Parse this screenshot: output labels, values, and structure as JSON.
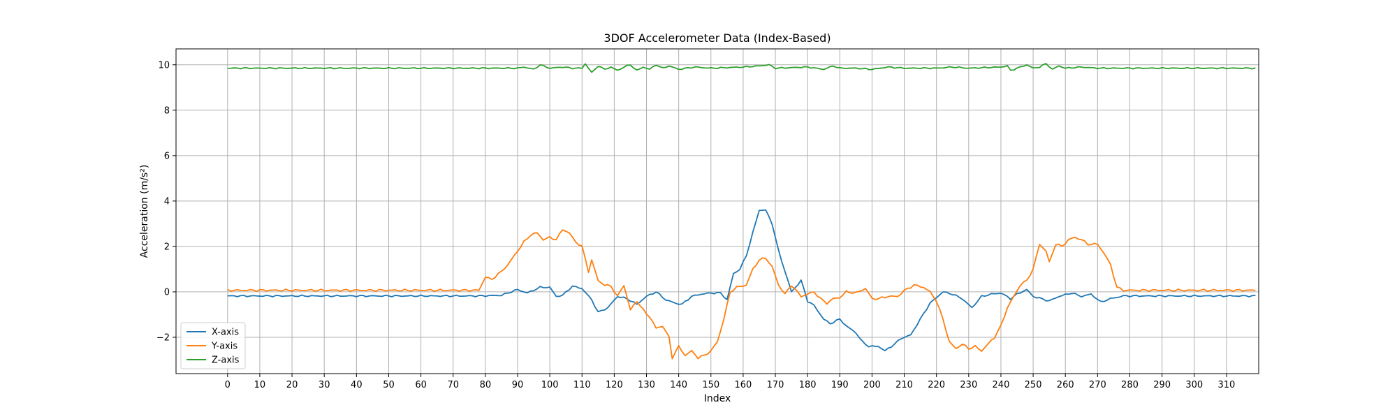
{
  "chart_data": {
    "type": "line",
    "title": "3DOF Accelerometer Data (Index-Based)",
    "xlabel": "Index",
    "ylabel": "Acceleration (m/s²)",
    "xlim": [
      -16,
      320
    ],
    "ylim": [
      -3.6,
      10.7
    ],
    "xticks": [
      0,
      10,
      20,
      30,
      40,
      50,
      60,
      70,
      80,
      90,
      100,
      110,
      120,
      130,
      140,
      150,
      160,
      170,
      180,
      190,
      200,
      210,
      220,
      230,
      240,
      250,
      260,
      270,
      280,
      290,
      300,
      310
    ],
    "yticks": [
      -2,
      0,
      2,
      4,
      6,
      8,
      10
    ],
    "grid": true,
    "legend_position": "lower-left",
    "x_range": [
      0,
      319
    ],
    "series": [
      {
        "name": "X-axis",
        "color": "#1f77b4",
        "keypoints": [
          [
            0,
            -0.18
          ],
          [
            78,
            -0.18
          ],
          [
            85,
            -0.15
          ],
          [
            90,
            0.1
          ],
          [
            93,
            -0.05
          ],
          [
            97,
            0.2
          ],
          [
            100,
            0.2
          ],
          [
            102,
            -0.2
          ],
          [
            104,
            -0.15
          ],
          [
            107,
            0.25
          ],
          [
            110,
            0.15
          ],
          [
            113,
            -0.35
          ],
          [
            115,
            -0.9
          ],
          [
            118,
            -0.7
          ],
          [
            121,
            -0.2
          ],
          [
            124,
            -0.3
          ],
          [
            127,
            -0.55
          ],
          [
            130,
            -0.2
          ],
          [
            133,
            0.0
          ],
          [
            136,
            -0.35
          ],
          [
            139,
            -0.5
          ],
          [
            141,
            -0.55
          ],
          [
            144,
            -0.2
          ],
          [
            147,
            -0.1
          ],
          [
            150,
            -0.05
          ],
          [
            153,
            -0.05
          ],
          [
            155,
            -0.35
          ],
          [
            157,
            0.8
          ],
          [
            159,
            1.0
          ],
          [
            161,
            1.6
          ],
          [
            163,
            2.6
          ],
          [
            165,
            3.6
          ],
          [
            167,
            3.6
          ],
          [
            169,
            3.0
          ],
          [
            171,
            1.8
          ],
          [
            173,
            0.9
          ],
          [
            175,
            0.0
          ],
          [
            178,
            0.5
          ],
          [
            180,
            -0.4
          ],
          [
            182,
            -0.6
          ],
          [
            185,
            -1.2
          ],
          [
            187,
            -1.4
          ],
          [
            190,
            -1.2
          ],
          [
            192,
            -1.5
          ],
          [
            195,
            -1.8
          ],
          [
            197,
            -2.2
          ],
          [
            199,
            -2.4
          ],
          [
            202,
            -2.4
          ],
          [
            204,
            -2.6
          ],
          [
            207,
            -2.3
          ],
          [
            209,
            -2.05
          ],
          [
            212,
            -1.9
          ],
          [
            215,
            -1.2
          ],
          [
            218,
            -0.5
          ],
          [
            222,
            0.0
          ],
          [
            225,
            -0.1
          ],
          [
            228,
            -0.3
          ],
          [
            231,
            -0.7
          ],
          [
            234,
            -0.2
          ],
          [
            237,
            -0.1
          ],
          [
            240,
            -0.05
          ],
          [
            243,
            -0.3
          ],
          [
            245,
            -0.1
          ],
          [
            248,
            0.1
          ],
          [
            250,
            -0.2
          ],
          [
            255,
            -0.4
          ],
          [
            258,
            -0.2
          ],
          [
            262,
            -0.05
          ],
          [
            265,
            -0.2
          ],
          [
            268,
            -0.1
          ],
          [
            271,
            -0.45
          ],
          [
            274,
            -0.3
          ],
          [
            278,
            -0.18
          ],
          [
            319,
            -0.18
          ]
        ],
        "noise": 0.04
      },
      {
        "name": "Y-axis",
        "color": "#ff7f0e",
        "keypoints": [
          [
            0,
            0.07
          ],
          [
            78,
            0.07
          ],
          [
            80,
            0.65
          ],
          [
            82,
            0.55
          ],
          [
            85,
            0.9
          ],
          [
            87,
            1.2
          ],
          [
            90,
            1.8
          ],
          [
            92,
            2.2
          ],
          [
            94,
            2.5
          ],
          [
            96,
            2.6
          ],
          [
            98,
            2.3
          ],
          [
            100,
            2.4
          ],
          [
            102,
            2.3
          ],
          [
            104,
            2.75
          ],
          [
            106,
            2.6
          ],
          [
            108,
            2.2
          ],
          [
            110,
            2.0
          ],
          [
            112,
            0.9
          ],
          [
            113,
            1.4
          ],
          [
            115,
            0.5
          ],
          [
            117,
            0.3
          ],
          [
            119,
            0.25
          ],
          [
            121,
            -0.2
          ],
          [
            123,
            0.3
          ],
          [
            125,
            -0.8
          ],
          [
            127,
            -0.4
          ],
          [
            129,
            -0.8
          ],
          [
            131,
            -1.1
          ],
          [
            133,
            -1.6
          ],
          [
            135,
            -1.5
          ],
          [
            137,
            -2.0
          ],
          [
            138,
            -2.9
          ],
          [
            140,
            -2.4
          ],
          [
            142,
            -2.8
          ],
          [
            144,
            -2.6
          ],
          [
            146,
            -2.9
          ],
          [
            148,
            -2.8
          ],
          [
            150,
            -2.6
          ],
          [
            152,
            -2.2
          ],
          [
            154,
            -1.2
          ],
          [
            156,
            0.0
          ],
          [
            158,
            0.2
          ],
          [
            161,
            0.3
          ],
          [
            163,
            1.0
          ],
          [
            165,
            1.4
          ],
          [
            167,
            1.5
          ],
          [
            169,
            1.1
          ],
          [
            171,
            0.3
          ],
          [
            173,
            -0.1
          ],
          [
            175,
            0.3
          ],
          [
            178,
            -0.2
          ],
          [
            180,
            -0.1
          ],
          [
            182,
            0.0
          ],
          [
            184,
            -0.3
          ],
          [
            186,
            -0.5
          ],
          [
            188,
            -0.3
          ],
          [
            190,
            -0.25
          ],
          [
            192,
            0.0
          ],
          [
            195,
            -0.05
          ],
          [
            198,
            0.15
          ],
          [
            200,
            -0.3
          ],
          [
            202,
            -0.3
          ],
          [
            205,
            -0.2
          ],
          [
            208,
            -0.2
          ],
          [
            210,
            0.05
          ],
          [
            213,
            0.3
          ],
          [
            216,
            0.2
          ],
          [
            218,
            0.0
          ],
          [
            220,
            -0.4
          ],
          [
            222,
            -1.2
          ],
          [
            224,
            -2.2
          ],
          [
            226,
            -2.5
          ],
          [
            228,
            -2.3
          ],
          [
            230,
            -2.5
          ],
          [
            232,
            -2.4
          ],
          [
            234,
            -2.6
          ],
          [
            236,
            -2.3
          ],
          [
            238,
            -2.0
          ],
          [
            240,
            -1.5
          ],
          [
            242,
            -0.7
          ],
          [
            244,
            -0.2
          ],
          [
            246,
            0.3
          ],
          [
            248,
            0.5
          ],
          [
            250,
            1.0
          ],
          [
            252,
            2.1
          ],
          [
            254,
            1.8
          ],
          [
            255,
            1.3
          ],
          [
            257,
            2.1
          ],
          [
            259,
            2.0
          ],
          [
            261,
            2.3
          ],
          [
            263,
            2.4
          ],
          [
            265,
            2.3
          ],
          [
            267,
            2.1
          ],
          [
            270,
            2.1
          ],
          [
            272,
            1.7
          ],
          [
            274,
            1.2
          ],
          [
            276,
            0.2
          ],
          [
            278,
            0.07
          ],
          [
            319,
            0.07
          ]
        ],
        "noise": 0.05
      },
      {
        "name": "Z-axis",
        "color": "#2ca02c",
        "keypoints": [
          [
            0,
            9.85
          ],
          [
            90,
            9.85
          ],
          [
            92,
            9.9
          ],
          [
            95,
            9.8
          ],
          [
            97,
            10.0
          ],
          [
            100,
            9.85
          ],
          [
            104,
            9.9
          ],
          [
            107,
            9.85
          ],
          [
            110,
            9.85
          ],
          [
            111,
            10.05
          ],
          [
            113,
            9.65
          ],
          [
            115,
            9.95
          ],
          [
            117,
            9.8
          ],
          [
            119,
            9.9
          ],
          [
            121,
            9.75
          ],
          [
            123,
            9.9
          ],
          [
            125,
            10.0
          ],
          [
            127,
            9.75
          ],
          [
            129,
            9.9
          ],
          [
            131,
            9.8
          ],
          [
            133,
            10.0
          ],
          [
            135,
            9.85
          ],
          [
            137,
            9.95
          ],
          [
            140,
            9.8
          ],
          [
            145,
            9.9
          ],
          [
            150,
            9.85
          ],
          [
            160,
            9.9
          ],
          [
            165,
            9.95
          ],
          [
            168,
            10.0
          ],
          [
            170,
            9.85
          ],
          [
            180,
            9.9
          ],
          [
            185,
            9.8
          ],
          [
            188,
            9.95
          ],
          [
            190,
            9.85
          ],
          [
            195,
            9.85
          ],
          [
            200,
            9.8
          ],
          [
            205,
            9.9
          ],
          [
            210,
            9.85
          ],
          [
            220,
            9.85
          ],
          [
            225,
            9.9
          ],
          [
            230,
            9.85
          ],
          [
            240,
            9.9
          ],
          [
            242,
            9.95
          ],
          [
            243,
            9.75
          ],
          [
            245,
            9.85
          ],
          [
            248,
            10.0
          ],
          [
            250,
            9.85
          ],
          [
            252,
            9.9
          ],
          [
            254,
            10.05
          ],
          [
            256,
            9.8
          ],
          [
            258,
            9.95
          ],
          [
            260,
            9.85
          ],
          [
            265,
            9.9
          ],
          [
            270,
            9.85
          ],
          [
            319,
            9.85
          ]
        ],
        "noise": 0.03
      }
    ]
  }
}
